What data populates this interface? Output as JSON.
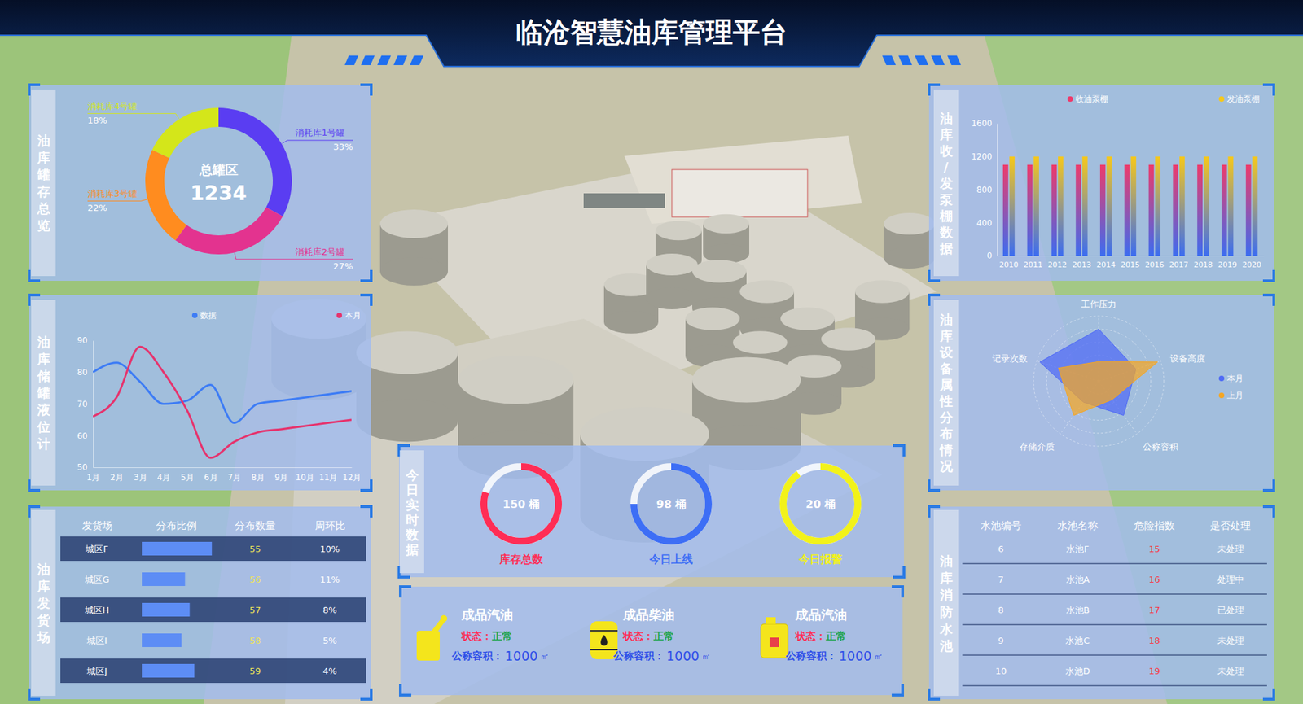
{
  "header": {
    "title": "临沧智慧油库管理平台"
  },
  "chart_data": [
    {
      "type": "pie",
      "title": "油库罐存总览",
      "center_label": "总罐区",
      "total": 1234,
      "categories": [
        "消耗库1号罐",
        "消耗库2号罐",
        "消耗库3号罐",
        "消耗库4号罐"
      ],
      "values": [
        33,
        27,
        22,
        18
      ],
      "value_labels": [
        "33%",
        "27%",
        "22%",
        "18%"
      ],
      "colors": [
        "#5a3df2",
        "#e3338f",
        "#ff8c1f",
        "#d4e61a"
      ],
      "data_labels": true
    },
    {
      "type": "line",
      "title": "油库储罐液位计",
      "categories": [
        "1月",
        "2月",
        "3月",
        "4月",
        "5月",
        "6月",
        "7月",
        "8月",
        "9月",
        "10月",
        "11月",
        "12月"
      ],
      "series": [
        {
          "name": "数据",
          "color": "#3d7cf5",
          "values": [
            80,
            83,
            77,
            70,
            71,
            76,
            64,
            70,
            71,
            72,
            73,
            74
          ]
        },
        {
          "name": "本月",
          "color": "#e6336d",
          "values": [
            66,
            72,
            88,
            80,
            68,
            53,
            58,
            61,
            62,
            63,
            64,
            65
          ]
        }
      ],
      "ylim": [
        50,
        90
      ],
      "yticks": [
        50,
        60,
        70,
        80,
        90
      ],
      "grid": false,
      "legend": "top"
    },
    {
      "type": "bar",
      "title": "油库收/发泵棚数据",
      "categories": [
        "2010",
        "2011",
        "2012",
        "2013",
        "2014",
        "2015",
        "2016",
        "2017",
        "2018",
        "2019",
        "2020"
      ],
      "series": [
        {
          "name": "收油泵棚",
          "color": "#ee3a6a",
          "values": [
            1100,
            1100,
            1100,
            1100,
            1100,
            1100,
            1100,
            1100,
            1100,
            1100,
            1100
          ]
        },
        {
          "name": "发油泵棚",
          "color": "#f6c81a",
          "values": [
            1200,
            1200,
            1200,
            1200,
            1200,
            1200,
            1200,
            1200,
            1200,
            1200,
            1200
          ]
        }
      ],
      "ylim": [
        0,
        1600
      ],
      "yticks": [
        0,
        400,
        800,
        1200,
        1600
      ],
      "grid": false,
      "legend": "top"
    },
    {
      "type": "radar",
      "title": "油库设备属性分布情况",
      "categories": [
        "工作压力",
        "设备高度",
        "公称容积",
        "存储介质",
        "记录次数"
      ],
      "series": [
        {
          "name": "本月",
          "color": "#4f6af5",
          "values": [
            80,
            60,
            65,
            40,
            95
          ]
        },
        {
          "name": "上月",
          "color": "#f5a623",
          "values": [
            30,
            95,
            35,
            65,
            65
          ]
        }
      ],
      "ylim": [
        0,
        100
      ],
      "yticks": [
        20,
        40,
        60,
        80,
        100
      ],
      "tick_labels": false,
      "grid": true,
      "legend": "right"
    }
  ],
  "shipping": {
    "title": "油库发货场",
    "columns": [
      "发货场",
      "分布比例",
      "分布数量",
      "周环比"
    ],
    "ratio_range": [
      0,
      100
    ],
    "rows": [
      {
        "name": "城区F",
        "ratio": 60,
        "count": 55,
        "wow": "10%"
      },
      {
        "name": "城区G",
        "ratio": 37,
        "count": 56,
        "wow": "11%"
      },
      {
        "name": "城区H",
        "ratio": 41,
        "count": 57,
        "wow": "8%"
      },
      {
        "name": "城区I",
        "ratio": 34,
        "count": 58,
        "wow": "5%"
      },
      {
        "name": "城区J",
        "ratio": 45,
        "count": 59,
        "wow": "4%"
      }
    ]
  },
  "realtime": {
    "title": "今日实时数据",
    "ring_range": [
      0,
      100
    ],
    "items": [
      {
        "value": 150,
        "unit": "桶",
        "label": "库存总数",
        "percent": 80,
        "color": "#ff2d55"
      },
      {
        "value": 98,
        "unit": "桶",
        "label": "今日上线",
        "percent": 75,
        "color": "#3d6ef5"
      },
      {
        "value": 20,
        "unit": "桶",
        "label": "今日报警",
        "percent": 90,
        "color": "#f2f21a"
      }
    ]
  },
  "products": [
    {
      "name": "成品汽油",
      "status_label": "状态：",
      "status": "正常",
      "capacity_label": "公称容积：",
      "capacity": 1000,
      "unit": "㎡"
    },
    {
      "name": "成品柴油",
      "status_label": "状态：",
      "status": "正常",
      "capacity_label": "公称容积：",
      "capacity": 1000,
      "unit": "㎡"
    },
    {
      "name": "成品汽油",
      "status_label": "状态：",
      "status": "正常",
      "capacity_label": "公称容积：",
      "capacity": 1000,
      "unit": "㎡"
    }
  ],
  "pools": {
    "title": "油库消防水池",
    "columns": [
      "水池编号",
      "水池名称",
      "危险指数",
      "是否处理"
    ],
    "rows": [
      [
        6,
        "水池F",
        15,
        "未处理"
      ],
      [
        7,
        "水池A",
        16,
        "处理中"
      ],
      [
        8,
        "水池B",
        17,
        "已处理"
      ],
      [
        9,
        "水池C",
        18,
        "未处理"
      ],
      [
        10,
        "水池D",
        19,
        "未处理"
      ]
    ]
  }
}
